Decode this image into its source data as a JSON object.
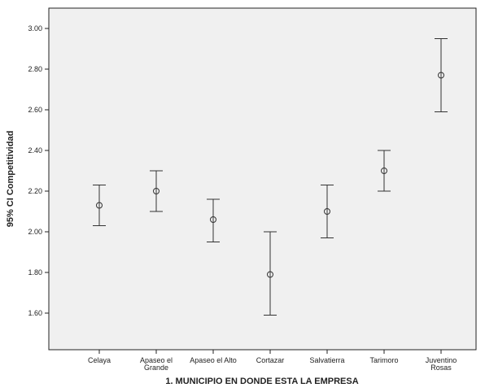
{
  "chart_data": {
    "type": "errorbar",
    "x_label": "1. MUNICIPIO EN DONDE ESTA LA EMPRESA",
    "y_label": "95% CI Competitividad",
    "categories": [
      "Celaya",
      "Apaseo el\nGrande",
      "Apaseo el Alto",
      "Cortazar",
      "Salvatierra",
      "Tarimoro",
      "Juventino\nRosas"
    ],
    "values": [
      2.13,
      2.2,
      2.06,
      1.79,
      2.1,
      2.3,
      2.77
    ],
    "lower": [
      2.03,
      2.1,
      1.95,
      1.59,
      1.97,
      2.2,
      2.59
    ],
    "upper": [
      2.23,
      2.3,
      2.16,
      2.0,
      2.23,
      2.4,
      2.95
    ],
    "color": "#333333",
    "ylim": [
      1.42,
      3.1
    ],
    "yticks": [
      {
        "value": 1.6,
        "label": "1.60"
      },
      {
        "value": 1.8,
        "label": "1.80"
      },
      {
        "value": 2.0,
        "label": "2.00"
      },
      {
        "value": 2.2,
        "label": "2.20"
      },
      {
        "value": 2.4,
        "label": "2.40"
      },
      {
        "value": 2.6,
        "label": "2.60"
      },
      {
        "value": 2.8,
        "label": "2.80"
      },
      {
        "value": 3.0,
        "label": "3.00"
      }
    ]
  }
}
